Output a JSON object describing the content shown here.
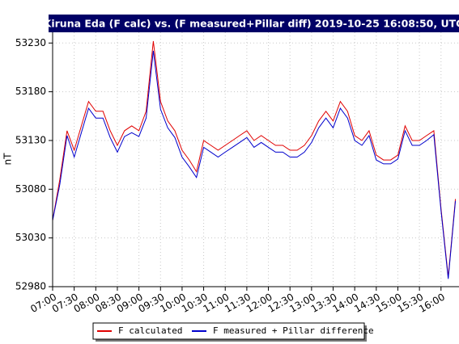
{
  "chart_data": {
    "type": "line",
    "title": "Kiruna Eda (F calc) vs. (F measured+Pillar diff) 2019-10-25 16:08:50, UTC",
    "y_label": "nT",
    "x": [
      420,
      430,
      440,
      450,
      460,
      470,
      480,
      490,
      500,
      510,
      520,
      530,
      540,
      550,
      560,
      570,
      580,
      590,
      600,
      610,
      620,
      630,
      640,
      650,
      660,
      670,
      680,
      690,
      700,
      710,
      720,
      730,
      740,
      750,
      760,
      770,
      780,
      790,
      800,
      810,
      820,
      830,
      840,
      850,
      860,
      870,
      880,
      890,
      900,
      910,
      920,
      930,
      940,
      950,
      960,
      970,
      980
    ],
    "series": [
      {
        "name": "F calculated",
        "color": "#e00000",
        "values": [
          53048,
          53090,
          53140,
          53120,
          53145,
          53170,
          53160,
          53160,
          53140,
          53125,
          53140,
          53145,
          53140,
          53160,
          53232,
          53170,
          53150,
          53140,
          53120,
          53110,
          53098,
          53130,
          53125,
          53120,
          53125,
          53130,
          53135,
          53140,
          53130,
          53135,
          53130,
          53125,
          53125,
          53120,
          53120,
          53125,
          53135,
          53150,
          53160,
          53150,
          53170,
          53160,
          53135,
          53130,
          53140,
          53115,
          53110,
          53110,
          53115,
          53145,
          53130,
          53130,
          53135,
          53140,
          53060,
          52990,
          53070
        ]
      },
      {
        "name": "F measured + Pillar difference",
        "color": "#0000cc",
        "values": [
          53048,
          53085,
          53135,
          53113,
          53138,
          53163,
          53153,
          53153,
          53133,
          53118,
          53134,
          53138,
          53134,
          53153,
          53222,
          53162,
          53143,
          53133,
          53113,
          53103,
          53092,
          53123,
          53118,
          53113,
          53118,
          53123,
          53128,
          53133,
          53123,
          53128,
          53123,
          53118,
          53118,
          53113,
          53113,
          53118,
          53128,
          53143,
          53153,
          53143,
          53163,
          53153,
          53130,
          53125,
          53135,
          53110,
          53106,
          53106,
          53111,
          53140,
          53125,
          53125,
          53130,
          53136,
          53058,
          52988,
          53068
        ]
      }
    ],
    "xlim": [
      420,
      985
    ],
    "xticks": [
      {
        "value": 420,
        "label": "07:00"
      },
      {
        "value": 450,
        "label": "07:30"
      },
      {
        "value": 480,
        "label": "08:00"
      },
      {
        "value": 510,
        "label": "08:30"
      },
      {
        "value": 540,
        "label": "09:00"
      },
      {
        "value": 570,
        "label": "09:30"
      },
      {
        "value": 600,
        "label": "10:00"
      },
      {
        "value": 630,
        "label": "10:30"
      },
      {
        "value": 660,
        "label": "11:00"
      },
      {
        "value": 690,
        "label": "11:30"
      },
      {
        "value": 720,
        "label": "12:00"
      },
      {
        "value": 750,
        "label": "12:30"
      },
      {
        "value": 780,
        "label": "13:00"
      },
      {
        "value": 810,
        "label": "13:30"
      },
      {
        "value": 840,
        "label": "14:00"
      },
      {
        "value": 870,
        "label": "14:30"
      },
      {
        "value": 900,
        "label": "15:00"
      },
      {
        "value": 930,
        "label": "15:30"
      },
      {
        "value": 960,
        "label": "16:00"
      }
    ],
    "ylim": [
      52980,
      53241
    ],
    "yticks": [
      52980,
      53030,
      53080,
      53130,
      53180,
      53230
    ],
    "grid": true
  }
}
